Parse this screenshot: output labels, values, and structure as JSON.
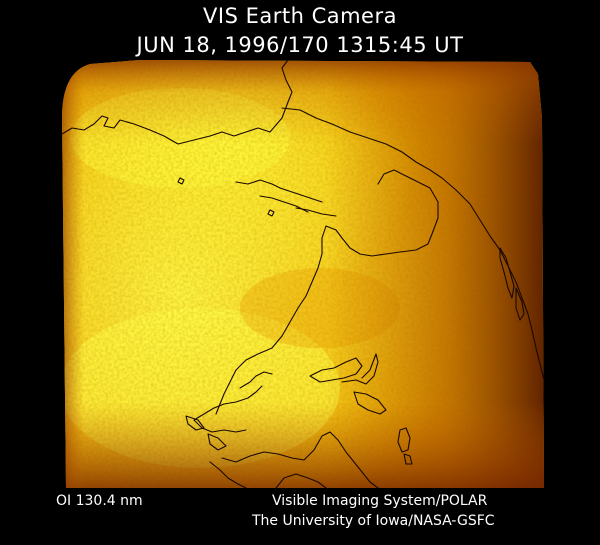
{
  "header": {
    "title": "VIS Earth Camera",
    "timestamp": "JUN 18, 1996/170 1315:45 UT"
  },
  "image": {
    "subject": "auroral-emission-image",
    "coastline_color": "#1a0800",
    "colors": {
      "brightest": "#ffff40",
      "bright": "#f6e000",
      "mid": "#f0a800",
      "dim": "#c06000",
      "dark": "#501800",
      "background": "#000000"
    }
  },
  "footer": {
    "filter": "OI  130.4 nm",
    "credit_line_1": "Visible Imaging System/POLAR",
    "credit_line_2": "The University of Iowa/NASA-GSFC"
  }
}
